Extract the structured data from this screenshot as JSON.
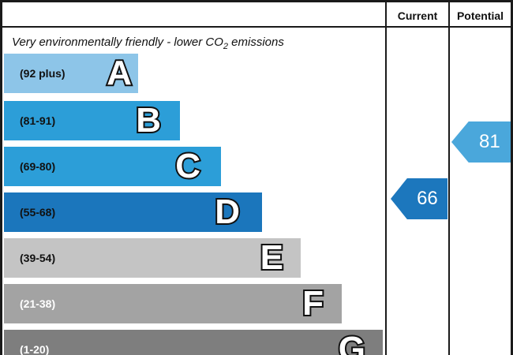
{
  "header": {
    "current": "Current",
    "potential": "Potential"
  },
  "title": {
    "prefix": "Very environmentally friendly - lower CO",
    "sub": "2",
    "suffix": " emissions"
  },
  "bands": [
    {
      "letter": "A",
      "range": "(92 plus)",
      "color": "#8DC5E8",
      "label_color": "#111111"
    },
    {
      "letter": "B",
      "range": "(81-91)",
      "color": "#2C9ED8",
      "label_color": "#111111"
    },
    {
      "letter": "C",
      "range": "(69-80)",
      "color": "#2C9ED8",
      "label_color": "#111111"
    },
    {
      "letter": "D",
      "range": "(55-68)",
      "color": "#1B76BC",
      "label_color": "#111111"
    },
    {
      "letter": "E",
      "range": "(39-54)",
      "color": "#C4C4C4",
      "label_color": "#111111"
    },
    {
      "letter": "F",
      "range": "(21-38)",
      "color": "#A3A3A3",
      "label_color": "#FFFFFF"
    },
    {
      "letter": "G",
      "range": "(1-20)",
      "color": "#7E7E7E",
      "label_color": "#FFFFFF"
    }
  ],
  "arrows": {
    "current": {
      "value": "66",
      "color": "#1C77BD"
    },
    "potential": {
      "value": "81",
      "color": "#4AA7DB"
    }
  },
  "chart_data": {
    "type": "bar",
    "title": "Very environmentally friendly - lower CO2 emissions",
    "categories": [
      "A",
      "B",
      "C",
      "D",
      "E",
      "F",
      "G"
    ],
    "band_ranges": [
      "92 plus",
      "81-91",
      "69-80",
      "55-68",
      "39-54",
      "21-38",
      "1-20"
    ],
    "bar_relative_widths": [
      170,
      223,
      275,
      327,
      376,
      428,
      480
    ],
    "columns": [
      "Current",
      "Potential"
    ],
    "current_value": 66,
    "current_band": "D",
    "potential_value": 81,
    "potential_band": "B",
    "band_colors": [
      "#8DC5E8",
      "#2C9ED8",
      "#2C9ED8",
      "#1B76BC",
      "#C4C4C4",
      "#A3A3A3",
      "#7E7E7E"
    ],
    "legend_position": "none",
    "grid": false
  }
}
